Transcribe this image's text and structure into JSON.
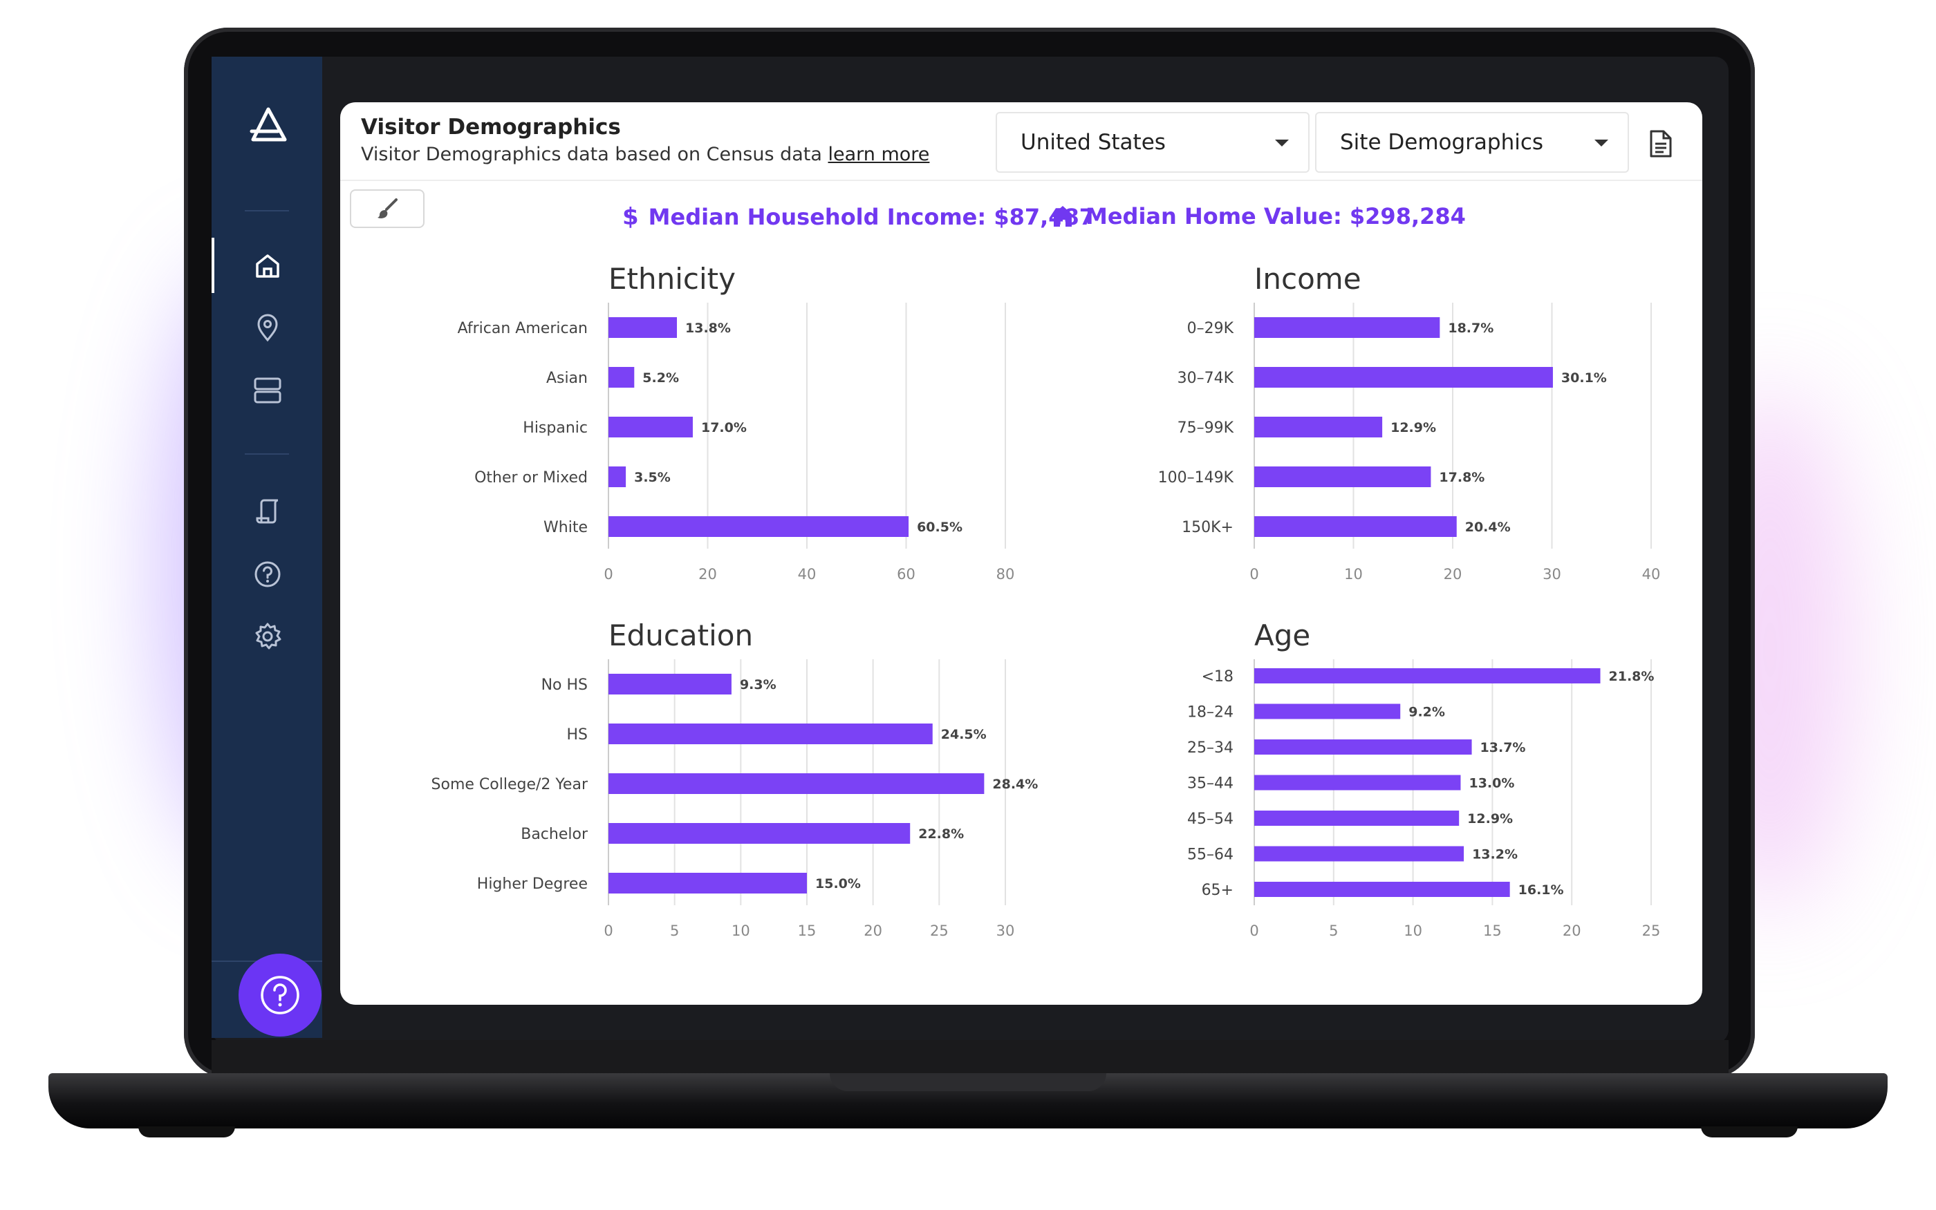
{
  "app": {
    "nav": [
      "home-icon",
      "location-pin-icon",
      "server-icon",
      "script-icon",
      "help-icon",
      "gear-icon"
    ],
    "help_fab_icon": "help-icon"
  },
  "header": {
    "title": "Visitor Demographics",
    "subtitle": "Visitor Demographics data based on Census data",
    "learn_more": "learn more",
    "country_select": "United States",
    "data_select": "Site Demographics"
  },
  "stats": {
    "income_label": "Median Household Income: $87,487",
    "home_label": "Median Home Value: $298,284"
  },
  "colors": {
    "accent": "#7138f0",
    "bar": "#7b42f5",
    "sidebar": "#1a2e4d"
  },
  "chart_data": [
    {
      "type": "bar",
      "orientation": "horizontal",
      "title": "Ethnicity",
      "categories": [
        "African American",
        "Asian",
        "Hispanic",
        "Other or Mixed",
        "White"
      ],
      "values": [
        13.8,
        5.2,
        17.0,
        3.5,
        60.5
      ],
      "labels": [
        "13.8%",
        "5.2%",
        "17.0%",
        "3.5%",
        "60.5%"
      ],
      "xlim": [
        0,
        80
      ],
      "xticks": [
        0,
        20,
        40,
        60,
        80
      ],
      "grid": true
    },
    {
      "type": "bar",
      "orientation": "horizontal",
      "title": "Income",
      "categories": [
        "0–29K",
        "30–74K",
        "75–99K",
        "100–149K",
        "150K+"
      ],
      "values": [
        18.7,
        30.1,
        12.9,
        17.8,
        20.4
      ],
      "labels": [
        "18.7%",
        "30.1%",
        "12.9%",
        "17.8%",
        "20.4%"
      ],
      "xlim": [
        0,
        40
      ],
      "xticks": [
        0,
        10,
        20,
        30,
        40
      ],
      "grid": true
    },
    {
      "type": "bar",
      "orientation": "horizontal",
      "title": "Education",
      "categories": [
        "No HS",
        "HS",
        "Some College/2 Year",
        "Bachelor",
        "Higher Degree"
      ],
      "values": [
        9.3,
        24.5,
        28.4,
        22.8,
        15.0
      ],
      "labels": [
        "9.3%",
        "24.5%",
        "28.4%",
        "22.8%",
        "15.0%"
      ],
      "xlim": [
        0,
        30
      ],
      "xticks": [
        0,
        5,
        10,
        15,
        20,
        25,
        30
      ],
      "grid": true
    },
    {
      "type": "bar",
      "orientation": "horizontal",
      "title": "Age",
      "categories": [
        "<18",
        "18–24",
        "25–34",
        "35–44",
        "45–54",
        "55–64",
        "65+"
      ],
      "values": [
        21.8,
        9.2,
        13.7,
        13.0,
        12.9,
        13.2,
        16.1
      ],
      "labels": [
        "21.8%",
        "9.2%",
        "13.7%",
        "13.0%",
        "12.9%",
        "13.2%",
        "16.1%"
      ],
      "xlim": [
        0,
        25
      ],
      "xticks": [
        0,
        5,
        10,
        15,
        20,
        25
      ],
      "grid": true
    }
  ]
}
